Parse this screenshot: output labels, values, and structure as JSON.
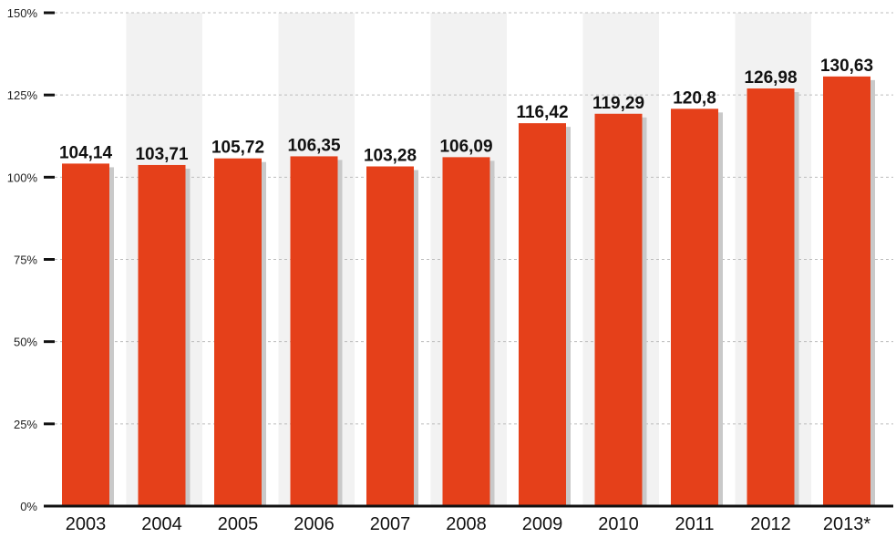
{
  "chart_data": {
    "type": "bar",
    "title": "",
    "xlabel": "",
    "ylabel": "",
    "categories": [
      "2003",
      "2004",
      "2005",
      "2006",
      "2007",
      "2008",
      "2009",
      "2010",
      "2011",
      "2012",
      "2013*"
    ],
    "values": [
      104.14,
      103.71,
      105.72,
      106.35,
      103.28,
      106.09,
      116.42,
      119.29,
      120.8,
      126.98,
      130.63
    ],
    "value_labels": [
      "104,14",
      "103,71",
      "105,72",
      "106,35",
      "103,28",
      "106,09",
      "116,42",
      "119,29",
      "120,8",
      "126,98",
      "130,63"
    ],
    "ylim": [
      0,
      150
    ],
    "y_ticks": [
      0,
      25,
      50,
      75,
      100,
      125,
      150
    ],
    "y_tick_labels": [
      "0%",
      "25%",
      "50%",
      "75%",
      "100%",
      "125%",
      "150%"
    ],
    "grid": true,
    "alternating_column_bands": true,
    "colors": {
      "bar": "#e5401a",
      "bar_shadow": "#c9c9c9",
      "band": "#f2f2f2",
      "axis": "#111111",
      "grid": "#bdbdbd"
    }
  }
}
